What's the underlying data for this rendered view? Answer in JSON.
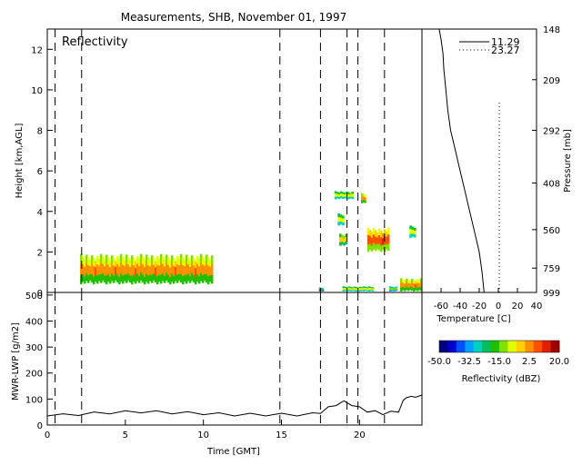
{
  "title": "Measurements, SHB, November 01, 1997",
  "top_panel": {
    "label": "Reflectivity",
    "ylabel": "Height [km,AGL]",
    "ylim": [
      0,
      13
    ],
    "yticks": [
      0,
      2,
      4,
      6,
      8,
      10,
      12
    ]
  },
  "bottom_panel": {
    "ylabel": "MWR-LWP [g/m2]",
    "ylim": [
      0,
      510
    ],
    "yticks": [
      0,
      100,
      200,
      300,
      400,
      500
    ],
    "xlabel": "Time [GMT]",
    "xlim": [
      0,
      24
    ],
    "xticks": [
      0,
      5,
      10,
      15,
      20
    ]
  },
  "sounding_panel": {
    "xlabel": "Temperature [C]",
    "xlim": [
      -80,
      40
    ],
    "xticks": [
      -60,
      -40,
      -20,
      0,
      20,
      40
    ],
    "xtick_labels": [
      "-60",
      "-40",
      "-20",
      "0",
      "20",
      "40"
    ],
    "ylabel": "Pressure [mb]",
    "pressure_labels": [
      "148",
      "209",
      "292",
      "408",
      "560",
      "759",
      "999"
    ],
    "pressure_label_heights_km": [
      13.0,
      10.5,
      8.0,
      5.4,
      3.1,
      1.2,
      0
    ],
    "legend": [
      {
        "name": "11.29",
        "style": "solid"
      },
      {
        "name": "23.27",
        "style": "dotted"
      }
    ]
  },
  "colorbar": {
    "tick_labels": [
      "-50.0",
      "-32.5",
      "-15.0",
      "2.5",
      "20.0"
    ],
    "label": "Reflectivity (dBZ)",
    "colors": [
      "#000080",
      "#0000d0",
      "#0050ff",
      "#00a0ff",
      "#00d0c0",
      "#00c060",
      "#20c000",
      "#80e000",
      "#e0ff00",
      "#ffd000",
      "#ff9000",
      "#ff5000",
      "#e02000",
      "#a00000"
    ]
  },
  "chart_data": [
    {
      "type": "heatmap",
      "name": "Reflectivity",
      "xlim": [
        0,
        24
      ],
      "ylim": [
        0,
        13
      ],
      "vertical_dashed_lines_time": [
        0.5,
        2.2,
        14.9,
        17.5,
        19.2,
        19.9,
        21.6
      ],
      "echoes": [
        {
          "t0": 2.1,
          "t1": 10.6,
          "h0": 0.4,
          "h1": 1.9,
          "dbz": 0
        },
        {
          "t0": 17.4,
          "t1": 17.7,
          "h0": 0.05,
          "h1": 0.25,
          "dbz": -20
        },
        {
          "t0": 18.9,
          "t1": 20.9,
          "h0": 0.05,
          "h1": 0.3,
          "dbz": -10
        },
        {
          "t0": 21.9,
          "t1": 22.4,
          "h0": 0.05,
          "h1": 0.3,
          "dbz": -15
        },
        {
          "t0": 22.6,
          "t1": 24.0,
          "h0": 0.05,
          "h1": 0.7,
          "dbz": 0
        },
        {
          "t0": 18.4,
          "t1": 19.6,
          "h0": 4.6,
          "h1": 5.0,
          "dbz": -10
        },
        {
          "t0": 20.1,
          "t1": 20.4,
          "h0": 4.4,
          "h1": 4.9,
          "dbz": 0
        },
        {
          "t0": 18.6,
          "t1": 19.0,
          "h0": 3.3,
          "h1": 3.9,
          "dbz": -10
        },
        {
          "t0": 18.7,
          "t1": 19.2,
          "h0": 2.3,
          "h1": 2.9,
          "dbz": -5
        },
        {
          "t0": 20.5,
          "t1": 21.9,
          "h0": 2.0,
          "h1": 3.2,
          "dbz": 5
        },
        {
          "t0": 23.2,
          "t1": 23.6,
          "h0": 2.7,
          "h1": 3.3,
          "dbz": -10
        }
      ]
    },
    {
      "type": "line",
      "name": "MWR-LWP",
      "x": [
        0,
        1,
        2,
        3,
        4,
        5,
        6,
        7,
        8,
        9,
        10,
        11,
        12,
        13,
        14,
        15,
        16,
        17,
        17.5,
        18,
        18.5,
        19,
        19.5,
        20,
        20.5,
        21,
        21.5,
        22,
        22.5,
        22.8,
        23.0,
        23.3,
        23.6,
        24
      ],
      "y": [
        40,
        38,
        42,
        45,
        48,
        50,
        52,
        50,
        48,
        46,
        45,
        42,
        40,
        40,
        40,
        40,
        40,
        42,
        50,
        65,
        80,
        88,
        80,
        65,
        55,
        50,
        45,
        48,
        55,
        90,
        110,
        105,
        112,
        110
      ]
    },
    {
      "type": "line",
      "name": "Temperature sounding",
      "xlim": [
        -80,
        40
      ],
      "series": [
        {
          "name": "11.29",
          "style": "solid",
          "x": [
            -62,
            -60,
            -58,
            -57,
            -55,
            -53,
            -50,
            -45,
            -40,
            -35,
            -30,
            -25,
            -20,
            -17,
            -15
          ],
          "y": [
            13,
            12.5,
            11.8,
            11,
            10,
            9,
            8,
            7,
            6,
            5,
            4,
            3,
            2,
            1,
            0
          ]
        },
        {
          "name": "23.27",
          "style": "dotted",
          "x": [
            1,
            1
          ],
          "y": [
            0,
            9.5
          ]
        }
      ]
    }
  ]
}
